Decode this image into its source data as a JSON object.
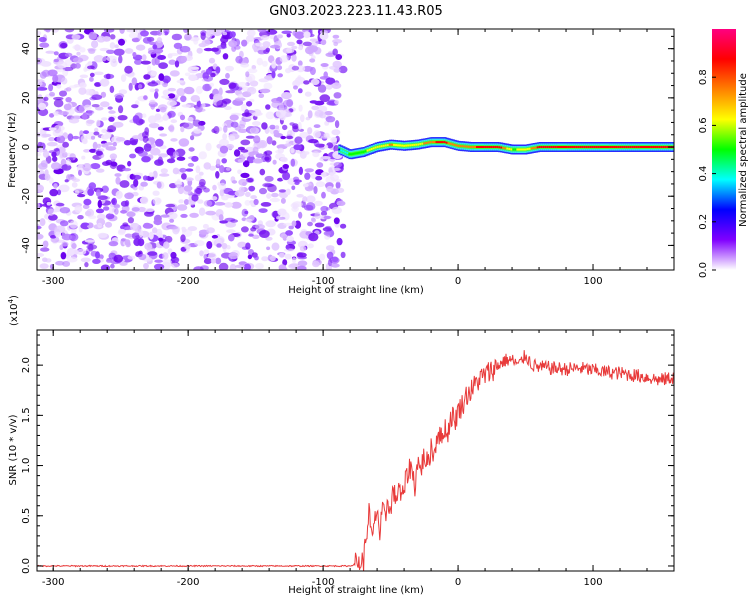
{
  "title": "GN03.2023.223.11.43.R05",
  "chart_data": [
    {
      "type": "heatmap",
      "xlabel": "Height of straight line (km)",
      "ylabel": "Frequency (Hz)",
      "xlim": [
        -312,
        160
      ],
      "ylim": [
        -50,
        48
      ],
      "x_ticks": [
        -300,
        -200,
        -100,
        0,
        100
      ],
      "y_ticks": [
        -40,
        -20,
        0,
        20,
        40
      ],
      "noise_region_x": [
        -312,
        -85
      ],
      "signal_band": [
        {
          "x": -88,
          "freq": -1,
          "amplitude": 0.3
        },
        {
          "x": -80,
          "freq": -3,
          "amplitude": 0.45
        },
        {
          "x": -70,
          "freq": -2,
          "amplitude": 0.55
        },
        {
          "x": -60,
          "freq": 0,
          "amplitude": 0.6
        },
        {
          "x": -50,
          "freq": 1,
          "amplitude": 0.7
        },
        {
          "x": -40,
          "freq": 0.5,
          "amplitude": 0.65
        },
        {
          "x": -30,
          "freq": 1,
          "amplitude": 0.6
        },
        {
          "x": -20,
          "freq": 2,
          "amplitude": 0.8
        },
        {
          "x": -10,
          "freq": 2,
          "amplitude": 0.85
        },
        {
          "x": 0,
          "freq": 0.5,
          "amplitude": 0.7
        },
        {
          "x": 10,
          "freq": 0,
          "amplitude": 0.8
        },
        {
          "x": 20,
          "freq": 0,
          "amplitude": 0.85
        },
        {
          "x": 30,
          "freq": 0,
          "amplitude": 0.9
        },
        {
          "x": 40,
          "freq": -1,
          "amplitude": 0.55
        },
        {
          "x": 50,
          "freq": -1,
          "amplitude": 0.6
        },
        {
          "x": 60,
          "freq": 0,
          "amplitude": 0.85
        },
        {
          "x": 80,
          "freq": 0,
          "amplitude": 0.9
        },
        {
          "x": 100,
          "freq": 0,
          "amplitude": 0.92
        },
        {
          "x": 120,
          "freq": 0,
          "amplitude": 0.9
        },
        {
          "x": 140,
          "freq": 0,
          "amplitude": 0.93
        },
        {
          "x": 160,
          "freq": 0,
          "amplitude": 0.9
        }
      ],
      "colorbar": {
        "label": "Normalized spectral amplitude",
        "range": [
          0,
          1
        ],
        "ticks": [
          "0.0",
          "0.2",
          "0.4",
          "0.6",
          "0.8"
        ],
        "colors": [
          "#ffffff",
          "#8000ff",
          "#0000ff",
          "#00ffff",
          "#00ff00",
          "#ffff00",
          "#ff8000",
          "#ff0000",
          "#ff0080"
        ]
      }
    },
    {
      "type": "line",
      "xlabel": "Height of straight line (km)",
      "ylabel": "SNR (10 * v/v)",
      "scale_label": "(x10",
      "scale_exponent": "4",
      "scale_close": ")",
      "xlim": [
        -312,
        160
      ],
      "ylim": [
        -0.05,
        2.35
      ],
      "x_ticks": [
        -300,
        -200,
        -100,
        0,
        100
      ],
      "y_ticks": [
        "0.0",
        "0.5",
        "1.0",
        "1.5",
        "2.0"
      ],
      "color": "#e83a3a",
      "series": [
        {
          "x": [
            -312,
            -250,
            -150,
            -80,
            -70,
            -68,
            -66,
            -64,
            -62,
            -60,
            -58,
            -56,
            -54,
            -52,
            -50,
            -48,
            -46,
            -44,
            -42,
            -40,
            -38,
            -35,
            -32,
            -30,
            -28,
            -25,
            -22,
            -20,
            -18,
            -15,
            -12,
            -10,
            -8,
            -5,
            -2,
            0,
            3,
            6,
            10,
            15,
            20,
            25,
            30,
            35,
            40,
            45,
            50,
            55,
            60,
            70,
            80,
            90,
            100,
            110,
            120,
            130,
            140,
            150,
            160
          ],
          "y": [
            0.0,
            0.0,
            0.0,
            0.0,
            0.05,
            0.3,
            0.55,
            0.25,
            0.4,
            0.6,
            0.3,
            0.55,
            0.45,
            0.7,
            0.5,
            0.8,
            0.6,
            0.85,
            0.65,
            0.75,
            0.9,
            1.0,
            0.8,
            1.05,
            0.95,
            1.1,
            1.0,
            1.2,
            1.1,
            1.35,
            1.25,
            1.4,
            1.3,
            1.5,
            1.45,
            1.55,
            1.6,
            1.7,
            1.75,
            1.85,
            1.9,
            1.95,
            2.0,
            2.05,
            2.05,
            2.0,
            2.1,
            2.0,
            1.98,
            1.97,
            1.96,
            1.97,
            1.95,
            1.93,
            1.92,
            1.9,
            1.88,
            1.85,
            1.88
          ]
        }
      ]
    }
  ]
}
